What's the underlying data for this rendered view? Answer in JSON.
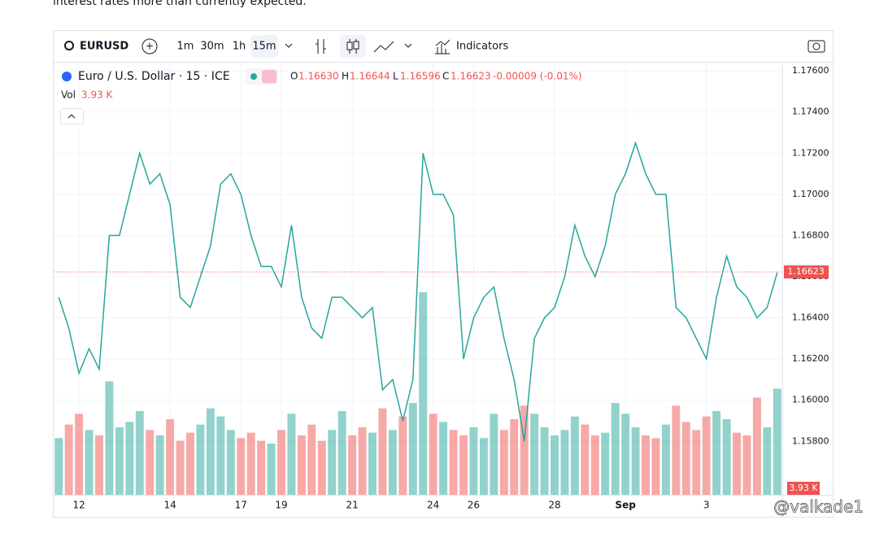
{
  "page_text": "interest rates more than currently expected.",
  "toolbar": {
    "symbol": "EURUSD",
    "intervals": [
      "1m",
      "30m",
      "1h",
      "15m"
    ],
    "indicators": "Indicators"
  },
  "legend": {
    "name": "Euro / U.S. Dollar · 15 · ICE",
    "o_key": "O",
    "o": "1.16630",
    "h_key": "H",
    "h": "1.16644",
    "l_key": "L",
    "l": "1.16596",
    "c_key": "C",
    "c": "1.16623",
    "change": "-0.00009 (-0.01%)",
    "vol_key": "Vol",
    "vol": "3.93 K"
  },
  "watermark": "@valkade1",
  "chart_data": {
    "type": "line",
    "color": "#26a69a",
    "categories": [
      null,
      null,
      "12",
      null,
      null,
      null,
      null,
      null,
      null,
      null,
      null,
      "14",
      null,
      null,
      null,
      null,
      null,
      null,
      "17",
      null,
      null,
      null,
      "19",
      null,
      null,
      null,
      null,
      null,
      null,
      "21",
      null,
      null,
      null,
      null,
      null,
      null,
      null,
      "24",
      null,
      null,
      null,
      "26",
      null,
      null,
      null,
      null,
      null,
      null,
      null,
      "28",
      null,
      null,
      null,
      null,
      null,
      null,
      "Sep",
      null,
      null,
      null,
      null,
      null,
      null,
      null,
      "3",
      null,
      null,
      null,
      null,
      null,
      null,
      null
    ],
    "values": [
      1.165,
      1.1635,
      1.1613,
      1.1625,
      1.1615,
      1.168,
      1.168,
      1.17,
      1.172,
      1.1705,
      1.171,
      1.1695,
      1.165,
      1.1645,
      1.166,
      1.1675,
      1.1705,
      1.171,
      1.17,
      1.168,
      1.1665,
      1.1665,
      1.1655,
      1.1685,
      1.165,
      1.1635,
      1.163,
      1.165,
      1.165,
      1.1645,
      1.164,
      1.1645,
      1.1605,
      1.161,
      1.159,
      1.161,
      1.172,
      1.17,
      1.17,
      1.169,
      1.162,
      1.164,
      1.165,
      1.1655,
      1.163,
      1.161,
      1.158,
      1.163,
      1.164,
      1.1645,
      1.166,
      1.1685,
      1.167,
      1.166,
      1.1675,
      1.17,
      1.171,
      1.1725,
      1.171,
      1.17,
      1.17,
      1.1645,
      1.164,
      1.163,
      1.162,
      1.165,
      1.167,
      1.1655,
      1.165,
      1.164,
      1.1645,
      1.1662
    ],
    "volume": [
      2.1,
      2.6,
      3.0,
      2.4,
      2.2,
      4.2,
      2.5,
      2.7,
      3.1,
      2.4,
      2.2,
      2.8,
      2.0,
      2.3,
      2.6,
      3.2,
      2.9,
      2.4,
      2.1,
      2.3,
      2.0,
      1.9,
      2.4,
      3.0,
      2.2,
      2.6,
      2.0,
      2.4,
      3.1,
      2.2,
      2.5,
      2.3,
      3.2,
      2.4,
      2.9,
      3.4,
      7.5,
      3.0,
      2.7,
      2.4,
      2.2,
      2.5,
      2.1,
      3.0,
      2.4,
      2.8,
      3.3,
      3.0,
      2.5,
      2.2,
      2.4,
      2.9,
      2.6,
      2.2,
      2.3,
      3.4,
      3.0,
      2.5,
      2.2,
      2.1,
      2.6,
      3.3,
      2.7,
      2.4,
      2.9,
      3.1,
      2.8,
      2.3,
      2.2,
      3.6,
      2.5,
      3.93
    ],
    "vol_ylim": [
      0,
      12
    ],
    "ylim": [
      1.1554,
      1.1764
    ],
    "yticks": [
      {
        "value": 1.176,
        "label": "1.17600"
      },
      {
        "value": 1.174,
        "label": "1.17400"
      },
      {
        "value": 1.172,
        "label": "1.17200"
      },
      {
        "value": 1.17,
        "label": "1.17000"
      },
      {
        "value": 1.168,
        "label": "1.16800"
      },
      {
        "value": 1.166,
        "label": "1.16600"
      },
      {
        "value": 1.164,
        "label": "1.16400"
      },
      {
        "value": 1.162,
        "label": "1.16200"
      },
      {
        "value": 1.16,
        "label": "1.16000"
      },
      {
        "value": 1.158,
        "label": "1.15800"
      }
    ],
    "last": {
      "value": 1.16623,
      "label": "1.16623"
    },
    "up_color": "#26a69a",
    "down_color": "#ef5350",
    "grid": true
  }
}
